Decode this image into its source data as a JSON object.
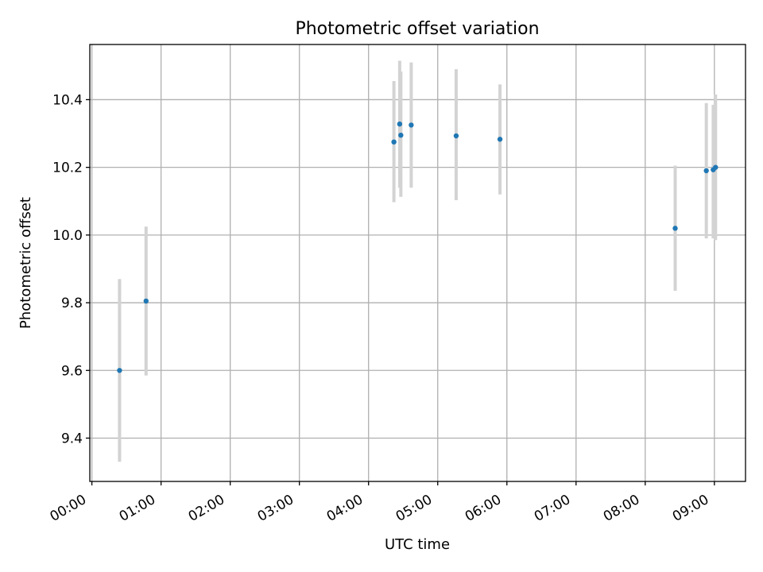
{
  "chart_data": {
    "type": "scatter",
    "title": "Photometric offset variation",
    "xlabel": "UTC time",
    "ylabel": "Photometric offset",
    "x_tick_labels": [
      "00:00",
      "01:00",
      "02:00",
      "03:00",
      "04:00",
      "05:00",
      "06:00",
      "07:00",
      "08:00",
      "09:00"
    ],
    "y_tick_labels": [
      "9.4",
      "9.6",
      "9.8",
      "10.0",
      "10.2",
      "10.4"
    ],
    "x_tick_hours": [
      0,
      1,
      2,
      3,
      4,
      5,
      6,
      7,
      8,
      9
    ],
    "y_ticks": [
      9.4,
      9.6,
      9.8,
      10.0,
      10.2,
      10.4
    ],
    "xlim_hours": [
      -0.03,
      9.45
    ],
    "ylim": [
      9.272,
      10.563
    ],
    "grid": true,
    "marker_color": "#1f77b4",
    "errorbar_color": "#d3d3d3",
    "points": [
      {
        "time": "00:24",
        "y": 9.6,
        "yerr_low": 9.33,
        "yerr_high": 9.87
      },
      {
        "time": "00:47",
        "y": 9.805,
        "yerr_low": 9.585,
        "yerr_high": 10.025
      },
      {
        "time": "04:22",
        "y": 10.275,
        "yerr_low": 10.097,
        "yerr_high": 10.455
      },
      {
        "time": "04:27",
        "y": 10.328,
        "yerr_low": 10.14,
        "yerr_high": 10.515
      },
      {
        "time": "04:28",
        "y": 10.295,
        "yerr_low": 10.113,
        "yerr_high": 10.483
      },
      {
        "time": "04:37",
        "y": 10.325,
        "yerr_low": 10.14,
        "yerr_high": 10.51
      },
      {
        "time": "05:16",
        "y": 10.293,
        "yerr_low": 10.103,
        "yerr_high": 10.49
      },
      {
        "time": "05:54",
        "y": 10.283,
        "yerr_low": 10.12,
        "yerr_high": 10.445
      },
      {
        "time": "08:26",
        "y": 10.02,
        "yerr_low": 9.835,
        "yerr_high": 10.205
      },
      {
        "time": "08:53",
        "y": 10.19,
        "yerr_low": 9.99,
        "yerr_high": 10.39
      },
      {
        "time": "08:59",
        "y": 10.193,
        "yerr_low": 9.99,
        "yerr_high": 10.385
      },
      {
        "time": "09:01",
        "y": 10.2,
        "yerr_low": 9.985,
        "yerr_high": 10.415
      }
    ]
  }
}
